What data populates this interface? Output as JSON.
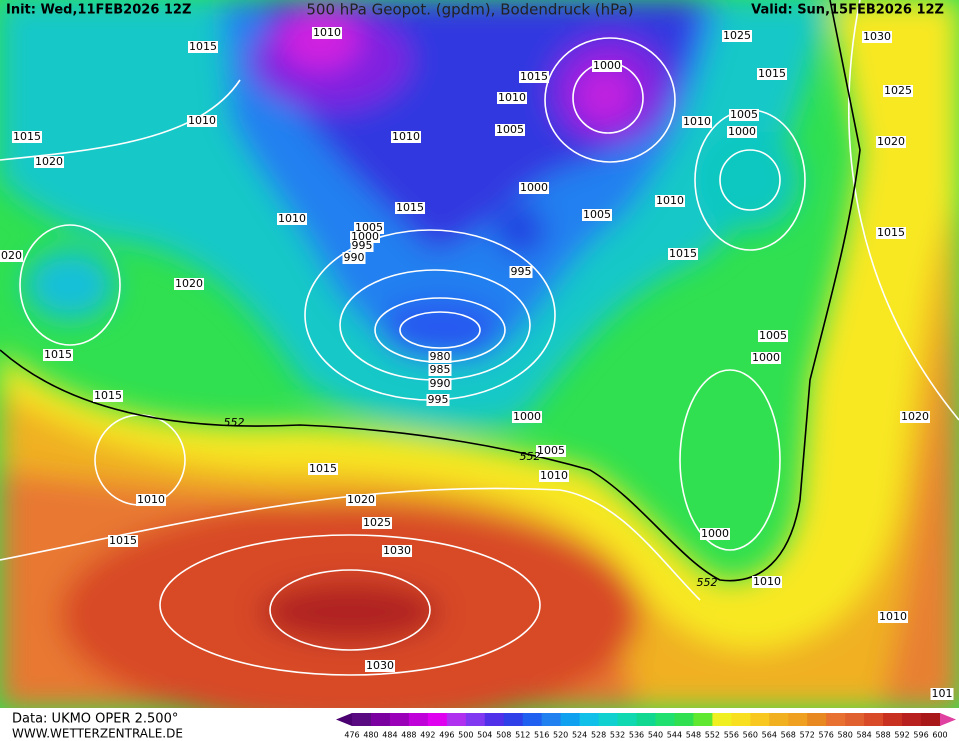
{
  "header": {
    "init": "Init: Wed,11FEB2026 12Z",
    "title": "500 hPa Geopot. (gpdm), Bodendruck (hPa)",
    "valid": "Valid: Sun,15FEB2026 12Z"
  },
  "map": {
    "isobar_labels": [
      "1015",
      "1010",
      "1025",
      "1030",
      "1015",
      "1000",
      "1015",
      "1025",
      "1010",
      "1010",
      "1015",
      "1010",
      "1005",
      "1010",
      "1005",
      "1000",
      "1020",
      "1020",
      "1000",
      "1015",
      "1010",
      "1005",
      "1010",
      "1005",
      "1000",
      "995",
      "990",
      "1015",
      "1015",
      "995",
      "1020",
      "1020",
      "1015",
      "1005",
      "1000",
      "980",
      "985",
      "990",
      "995",
      "1015",
      "1000",
      "1020",
      "552",
      "1005",
      "552",
      "1015",
      "1010",
      "1010",
      "1020",
      "1025",
      "1015",
      "1030",
      "1000",
      "552",
      "1010",
      "1010",
      "1030",
      "101"
    ]
  },
  "footer": {
    "source": "Data: UKMO OPER 2.500°",
    "website": "WWW.WETTERZENTRALE.DE"
  },
  "colorbar": {
    "ticks": [
      476,
      480,
      484,
      488,
      492,
      496,
      500,
      504,
      508,
      512,
      516,
      520,
      524,
      528,
      532,
      536,
      540,
      544,
      548,
      552,
      556,
      560,
      564,
      568,
      572,
      576,
      580,
      584,
      588,
      592,
      596,
      600
    ]
  }
}
